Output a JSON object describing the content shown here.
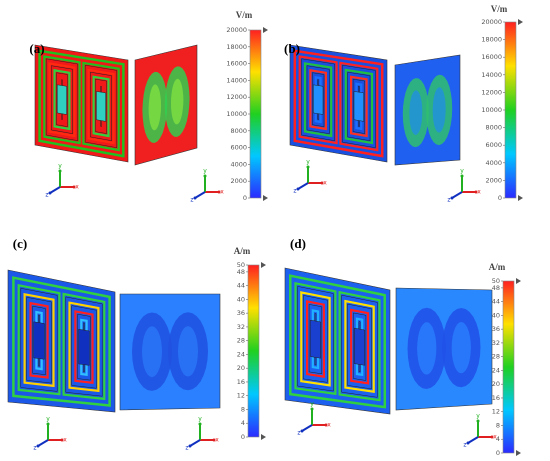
{
  "panels": [
    {
      "label": "(a)",
      "colorbar": {
        "unit": "V/m",
        "range": [
          0,
          20000
        ],
        "ticks": [
          0,
          2000,
          4000,
          6000,
          8000,
          10000,
          12000,
          14000,
          16000,
          18000,
          20000
        ]
      }
    },
    {
      "label": "(b)",
      "colorbar": {
        "unit": "V/m",
        "range": [
          0,
          20000
        ],
        "ticks": [
          0,
          2000,
          4000,
          6000,
          8000,
          10000,
          12000,
          14000,
          16000,
          18000,
          20000
        ]
      }
    },
    {
      "label": "(c)",
      "colorbar": {
        "unit": "A/m",
        "range": [
          0,
          50
        ],
        "ticks": [
          0,
          4,
          8,
          12,
          16,
          20,
          24,
          28,
          32,
          36,
          40,
          44,
          48,
          50
        ]
      }
    },
    {
      "label": "(d)",
      "colorbar": {
        "unit": "A/m",
        "range": [
          0,
          50
        ],
        "ticks": [
          0,
          4,
          8,
          12,
          16,
          20,
          24,
          28,
          32,
          36,
          40,
          44,
          48,
          50
        ]
      }
    }
  ],
  "axis_labels": [
    "x",
    "y",
    "z"
  ]
}
